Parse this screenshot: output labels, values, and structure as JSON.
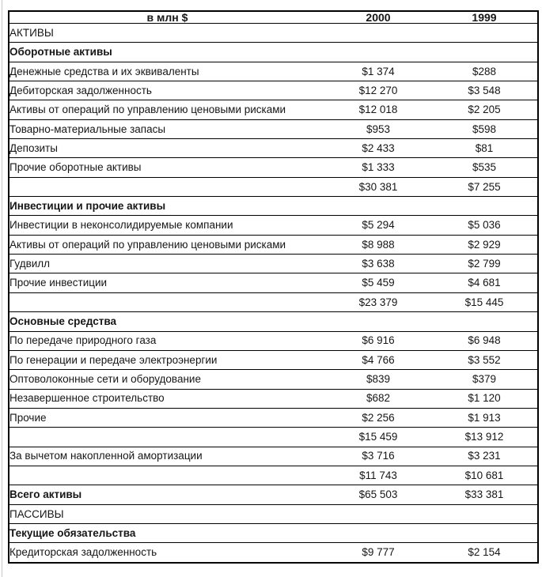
{
  "colors": {
    "background": "#ffffff",
    "border": "#000000",
    "text": "#161616",
    "scan_artifact": "#c9c9c9"
  },
  "document": {
    "header": {
      "unit_label": "в млн $",
      "col_2000": "2000",
      "col_1999": "1999"
    },
    "rows": [
      {
        "label": "АКТИВЫ",
        "v2000": "",
        "v1999": "",
        "style": "plain"
      },
      {
        "label": "Оборотные активы",
        "v2000": "",
        "v1999": "",
        "style": "bold"
      },
      {
        "label": "Денежные средства и их эквиваленты",
        "v2000": "$1 374",
        "v1999": "$288",
        "style": "plain"
      },
      {
        "label": "Дебиторская задолженность",
        "v2000": "$12 270",
        "v1999": "$3 548",
        "style": "plain"
      },
      {
        "label": "Активы от операций по управлению ценовыми рисками",
        "v2000": "$12 018",
        "v1999": "$2 205",
        "style": "plain"
      },
      {
        "label": "Товарно-материальные запасы",
        "v2000": "$953",
        "v1999": "$598",
        "style": "plain"
      },
      {
        "label": "Депозиты",
        "v2000": "$2 433",
        "v1999": "$81",
        "style": "plain"
      },
      {
        "label": "Прочие оборотные активы",
        "v2000": "$1 333",
        "v1999": "$535",
        "style": "plain"
      },
      {
        "label": "",
        "v2000": "$30 381",
        "v1999": "$7 255",
        "style": "subtotal"
      },
      {
        "label": "Инвестиции и прочие активы",
        "v2000": "",
        "v1999": "",
        "style": "bold"
      },
      {
        "label": "Инвестиции в неконсолидируемые компании",
        "v2000": "$5 294",
        "v1999": "$5 036",
        "style": "plain"
      },
      {
        "label": "Активы от операций по управлению ценовыми рисками",
        "v2000": "$8 988",
        "v1999": "$2 929",
        "style": "plain"
      },
      {
        "label": "Гудвилл",
        "v2000": "$3 638",
        "v1999": "$2 799",
        "style": "plain"
      },
      {
        "label": "Прочие инвестиции",
        "v2000": "$5 459",
        "v1999": "$4 681",
        "style": "plain"
      },
      {
        "label": "",
        "v2000": "$23 379",
        "v1999": "$15 445",
        "style": "subtotal"
      },
      {
        "label": "Основные средства",
        "v2000": "",
        "v1999": "",
        "style": "bold"
      },
      {
        "label": "По передаче природного газа",
        "v2000": "$6 916",
        "v1999": "$6 948",
        "style": "plain"
      },
      {
        "label": "По генерации и передаче электроэнергии",
        "v2000": "$4 766",
        "v1999": "$3 552",
        "style": "plain"
      },
      {
        "label": "Оптоволоконные сети и оборудование",
        "v2000": "$839",
        "v1999": "$379",
        "style": "plain"
      },
      {
        "label": "Незавершенное строительство",
        "v2000": "$682",
        "v1999": "$1 120",
        "style": "plain"
      },
      {
        "label": "Прочие",
        "v2000": "$2 256",
        "v1999": "$1 913",
        "style": "plain"
      },
      {
        "label": "",
        "v2000": "$15 459",
        "v1999": "$13 912",
        "style": "subtotal"
      },
      {
        "label": "За вычетом накопленной амортизации",
        "v2000": "$3 716",
        "v1999": "$3 231",
        "style": "plain"
      },
      {
        "label": "",
        "v2000": "$11 743",
        "v1999": "$10 681",
        "style": "subtotal"
      },
      {
        "label": "Всего активы",
        "v2000": "$65 503",
        "v1999": "$33 381",
        "style": "bold"
      },
      {
        "label": "ПАССИВЫ",
        "v2000": "",
        "v1999": "",
        "style": "plain"
      },
      {
        "label": "Текущие обязательства",
        "v2000": "",
        "v1999": "",
        "style": "bold"
      },
      {
        "label": "Кредиторская задолженность",
        "v2000": "$9 777",
        "v1999": "$2 154",
        "style": "plain"
      }
    ]
  }
}
